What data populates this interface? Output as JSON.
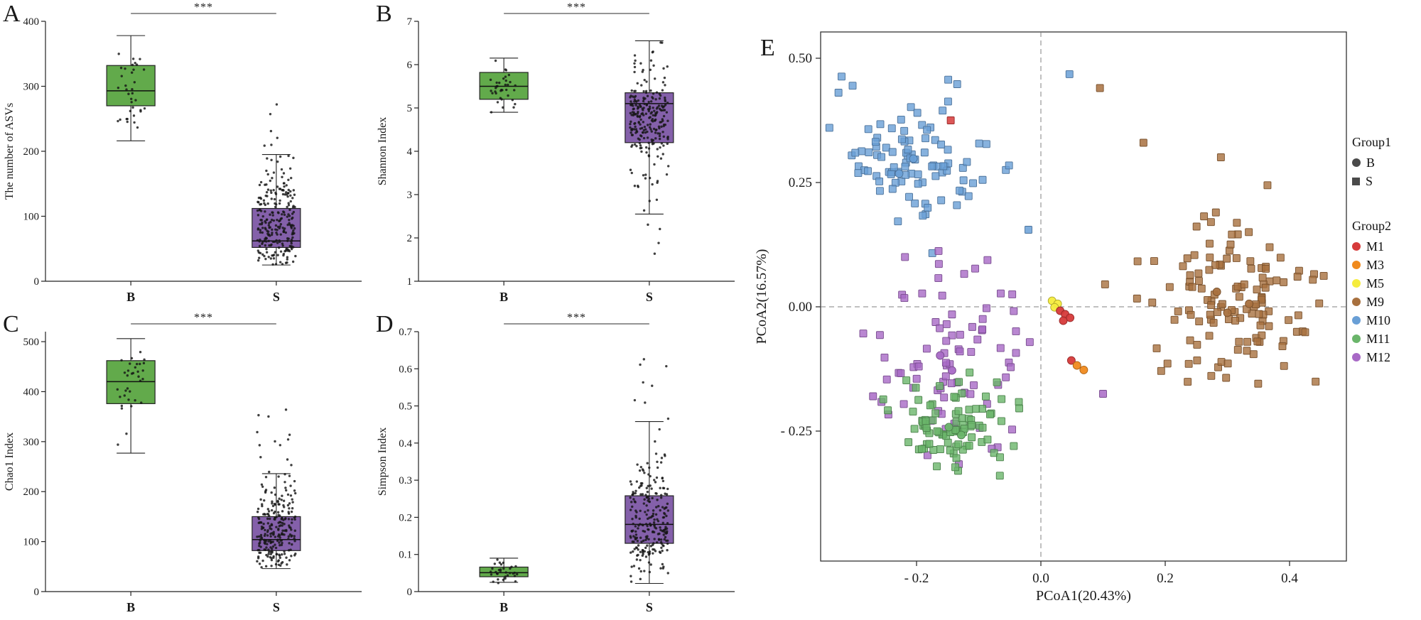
{
  "chart_data": {
    "type": "multi-panel",
    "boxplot_panels": [
      {
        "id": "A",
        "panel_label": "A",
        "type": "boxplot",
        "ylabel": "The number of ASVs",
        "ylim": [
          0,
          400
        ],
        "yticks": [
          {
            "v": 0,
            "t": "0"
          },
          {
            "v": 100,
            "t": "100"
          },
          {
            "v": 200,
            "t": "200"
          },
          {
            "v": 300,
            "t": "300"
          },
          {
            "v": 400,
            "t": "400"
          }
        ],
        "significance": "***",
        "categories": [
          "B",
          "S"
        ],
        "groups": [
          {
            "name": "B",
            "color": "#55a33c",
            "stats": {
              "whisker_low": 216,
              "q1": 270,
              "median": 293,
              "q3": 332,
              "whisker_high": 378
            },
            "scatter": {
              "n": 35,
              "mean": 298,
              "sd": 38,
              "min": 216,
              "max": 378
            },
            "seed": 11
          },
          {
            "name": "S",
            "color": "#7a52a3",
            "stats": {
              "whisker_low": 25,
              "q1": 52,
              "median": 62,
              "q3": 112,
              "whisker_high": 195
            },
            "scatter": {
              "n": 255,
              "mean": 85,
              "sd": 42,
              "min": 25,
              "max": 305
            },
            "seed": 12
          }
        ]
      },
      {
        "id": "B",
        "panel_label": "B",
        "type": "boxplot",
        "ylabel": "Shannon Index",
        "ylim": [
          1,
          7
        ],
        "yticks": [
          {
            "v": 1,
            "t": "1"
          },
          {
            "v": 2,
            "t": "2"
          },
          {
            "v": 3,
            "t": "3"
          },
          {
            "v": 4,
            "t": "4"
          },
          {
            "v": 5,
            "t": "5"
          },
          {
            "v": 6,
            "t": "6"
          },
          {
            "v": 7,
            "t": "7"
          }
        ],
        "significance": "***",
        "categories": [
          "B",
          "S"
        ],
        "groups": [
          {
            "name": "B",
            "color": "#55a33c",
            "stats": {
              "whisker_low": 4.9,
              "q1": 5.2,
              "median": 5.5,
              "q3": 5.82,
              "whisker_high": 6.15
            },
            "scatter": {
              "n": 35,
              "mean": 5.5,
              "sd": 0.3,
              "min": 4.9,
              "max": 6.15
            },
            "seed": 21
          },
          {
            "name": "S",
            "color": "#7a52a3",
            "stats": {
              "whisker_low": 2.55,
              "q1": 4.2,
              "median": 5.1,
              "q3": 5.35,
              "whisker_high": 6.55
            },
            "scatter": {
              "n": 255,
              "mean": 4.75,
              "sd": 0.6,
              "min": 1.62,
              "max": 6.55
            },
            "seed": 22
          }
        ]
      },
      {
        "id": "C",
        "panel_label": "C",
        "type": "boxplot",
        "ylabel": "Chao1 Index",
        "ylim": [
          0,
          520
        ],
        "yticks": [
          {
            "v": 0,
            "t": "0"
          },
          {
            "v": 100,
            "t": "100"
          },
          {
            "v": 200,
            "t": "200"
          },
          {
            "v": 300,
            "t": "300"
          },
          {
            "v": 400,
            "t": "400"
          },
          {
            "v": 500,
            "t": "500"
          }
        ],
        "significance": "***",
        "categories": [
          "B",
          "S"
        ],
        "groups": [
          {
            "name": "B",
            "color": "#55a33c",
            "stats": {
              "whisker_low": 277,
              "q1": 376,
              "median": 420,
              "q3": 462,
              "whisker_high": 506
            },
            "scatter": {
              "n": 33,
              "mean": 418,
              "sd": 48,
              "min": 277,
              "max": 506
            },
            "seed": 31
          },
          {
            "name": "S",
            "color": "#7a52a3",
            "stats": {
              "whisker_low": 46,
              "q1": 82,
              "median": 104,
              "q3": 150,
              "whisker_high": 236
            },
            "scatter": {
              "n": 255,
              "mean": 115,
              "sd": 48,
              "min": 46,
              "max": 375
            },
            "seed": 32
          }
        ]
      },
      {
        "id": "D",
        "panel_label": "D",
        "type": "boxplot",
        "ylabel": "Simpson Index",
        "ylim": [
          0,
          0.7
        ],
        "yticks": [
          {
            "v": 0,
            "t": "0"
          },
          {
            "v": 0.1,
            "t": "0.1"
          },
          {
            "v": 0.2,
            "t": "0.2"
          },
          {
            "v": 0.3,
            "t": "0.3"
          },
          {
            "v": 0.4,
            "t": "0.4"
          },
          {
            "v": 0.5,
            "t": "0.5"
          },
          {
            "v": 0.6,
            "t": "0.6"
          },
          {
            "v": 0.7,
            "t": "0.7"
          }
        ],
        "significance": "***",
        "categories": [
          "B",
          "S"
        ],
        "groups": [
          {
            "name": "B",
            "color": "#55a33c",
            "stats": {
              "whisker_low": 0.025,
              "q1": 0.04,
              "median": 0.051,
              "q3": 0.066,
              "whisker_high": 0.09
            },
            "scatter": {
              "n": 33,
              "mean": 0.052,
              "sd": 0.015,
              "min": 0.02,
              "max": 0.112
            },
            "seed": 41
          },
          {
            "name": "S",
            "color": "#7a52a3",
            "stats": {
              "whisker_low": 0.022,
              "q1": 0.13,
              "median": 0.181,
              "q3": 0.258,
              "whisker_high": 0.458
            },
            "scatter": {
              "n": 255,
              "mean": 0.2,
              "sd": 0.085,
              "min": 0.022,
              "max": 0.635
            },
            "seed": 42
          }
        ]
      }
    ],
    "pcoa_panel": {
      "id": "E",
      "panel_label": "E",
      "type": "scatter",
      "xlabel": "PCoA1(20.43%)",
      "ylabel": "PCoA2(16.57%)",
      "xlim": [
        -0.355,
        0.49
      ],
      "ylim": [
        -0.51,
        0.553
      ],
      "xticks": [
        {
          "v": -0.2,
          "t": "- 0.2"
        },
        {
          "v": 0,
          "t": "0.0"
        },
        {
          "v": 0.2,
          "t": "0.2"
        },
        {
          "v": 0.4,
          "t": "0.4"
        }
      ],
      "yticks": [
        {
          "v": 0.5,
          "t": "0.50"
        },
        {
          "v": 0.25,
          "t": "0.25"
        },
        {
          "v": 0,
          "t": "0.00"
        },
        {
          "v": -0.25,
          "t": "- 0.25"
        }
      ],
      "zero_lines": true,
      "shape_key": {
        "B": "circle",
        "S": "square"
      },
      "clusters": [
        {
          "group": "M10",
          "color": "#699fd6",
          "n": 96,
          "cx": -0.205,
          "cy": 0.3,
          "sdx": 0.062,
          "sdy": 0.075,
          "xmin": -0.345,
          "xmax": -0.02,
          "ymin": 0.05,
          "ymax": 0.465,
          "seed": 201
        },
        {
          "group": "M9",
          "color": "#a8703e",
          "n": 128,
          "cx": 0.3,
          "cy": 0.015,
          "sdx": 0.072,
          "sdy": 0.095,
          "xmin": 0.04,
          "xmax": 0.455,
          "ymin": -0.165,
          "ymax": 0.35,
          "seed": 202
        },
        {
          "group": "M12",
          "color": "#a869c6",
          "n": 80,
          "cx": -0.155,
          "cy": -0.105,
          "sdx": 0.07,
          "sdy": 0.095,
          "xmin": -0.325,
          "xmax": 0.0,
          "ymin": -0.325,
          "ymax": 0.205,
          "seed": 203
        },
        {
          "group": "M11",
          "color": "#6ab56a",
          "n": 88,
          "cx": -0.14,
          "cy": -0.235,
          "sdx": 0.052,
          "sdy": 0.052,
          "xmin": -0.265,
          "xmax": -0.03,
          "ymin": -0.365,
          "ymax": -0.105,
          "seed": 204
        }
      ],
      "extra_squares": [
        {
          "group": "M10",
          "color": "#699fd6",
          "x": 0.046,
          "y": 0.468
        },
        {
          "group": "M1",
          "color": "#d63a3a",
          "x": -0.145,
          "y": 0.375
        },
        {
          "group": "M9",
          "color": "#a8703e",
          "x": 0.095,
          "y": 0.44
        },
        {
          "group": "M9",
          "color": "#a8703e",
          "x": 0.165,
          "y": 0.33
        },
        {
          "group": "M12",
          "color": "#a869c6",
          "x": 0.1,
          "y": -0.175
        },
        {
          "group": "M10",
          "color": "#699fd6",
          "x": -0.02,
          "y": 0.155
        },
        {
          "group": "M12",
          "color": "#a869c6",
          "x": -0.27,
          "y": -0.18
        }
      ],
      "circle_points": [
        {
          "group": "M5",
          "color": "#f5ec3d",
          "x": 0.018,
          "y": 0.012
        },
        {
          "group": "M5",
          "color": "#f5ec3d",
          "x": 0.027,
          "y": 0.006
        },
        {
          "group": "M5",
          "color": "#f5ec3d",
          "x": 0.022,
          "y": -0.001
        },
        {
          "group": "M1",
          "color": "#d63a3a",
          "x": 0.031,
          "y": -0.008
        },
        {
          "group": "M1",
          "color": "#d63a3a",
          "x": 0.039,
          "y": -0.015
        },
        {
          "group": "M1",
          "color": "#d63a3a",
          "x": 0.047,
          "y": -0.022
        },
        {
          "group": "M1",
          "color": "#d63a3a",
          "x": 0.036,
          "y": -0.028
        },
        {
          "group": "M1",
          "color": "#d63a3a",
          "x": 0.049,
          "y": -0.108
        },
        {
          "group": "M3",
          "color": "#f08a1d",
          "x": 0.058,
          "y": -0.118
        },
        {
          "group": "M3",
          "color": "#f08a1d",
          "x": 0.069,
          "y": -0.127
        },
        {
          "group": "M9",
          "color": "#a8703e",
          "x": 0.3,
          "y": -0.012
        },
        {
          "group": "M9",
          "color": "#a8703e",
          "x": 0.335,
          "y": 0.006
        },
        {
          "group": "M9",
          "color": "#a8703e",
          "x": 0.283,
          "y": 0.03
        },
        {
          "group": "M10",
          "color": "#699fd6",
          "x": -0.205,
          "y": 0.298
        },
        {
          "group": "M10",
          "color": "#699fd6",
          "x": -0.228,
          "y": 0.268
        },
        {
          "group": "M11",
          "color": "#6ab56a",
          "x": -0.148,
          "y": -0.242
        },
        {
          "group": "M11",
          "color": "#6ab56a",
          "x": -0.128,
          "y": -0.258
        },
        {
          "group": "M12",
          "color": "#a869c6",
          "x": -0.162,
          "y": -0.098
        },
        {
          "group": "M12",
          "color": "#a869c6",
          "x": -0.143,
          "y": -0.128
        }
      ]
    }
  },
  "legend": {
    "group1": {
      "title": "Group1",
      "marker_color": "#4a4a4a",
      "items": [
        {
          "label": "B",
          "shape": "circle"
        },
        {
          "label": "S",
          "shape": "square"
        }
      ]
    },
    "group2": {
      "title": "Group2",
      "items": [
        {
          "label": "M1",
          "color": "#d63a3a"
        },
        {
          "label": "M3",
          "color": "#f08a1d"
        },
        {
          "label": "M5",
          "color": "#f5ec3d"
        },
        {
          "label": "M9",
          "color": "#a8703e"
        },
        {
          "label": "M10",
          "color": "#699fd6"
        },
        {
          "label": "M11",
          "color": "#6ab56a"
        },
        {
          "label": "M12",
          "color": "#a869c6"
        }
      ]
    }
  }
}
